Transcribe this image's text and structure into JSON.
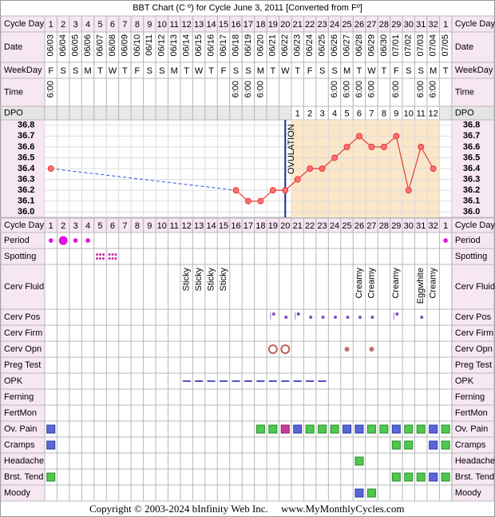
{
  "title": "BBT Chart (C º) for Cycle June 3, 2011  [Converted from Fº]",
  "header_rows": [
    {
      "label": "Cycle Day",
      "values": [
        1,
        2,
        3,
        4,
        5,
        6,
        7,
        8,
        9,
        10,
        11,
        12,
        13,
        14,
        15,
        16,
        17,
        18,
        19,
        20,
        21,
        22,
        23,
        24,
        25,
        26,
        27,
        28,
        29,
        30,
        31,
        32,
        1
      ]
    },
    {
      "label": "Date",
      "values": [
        "06/03",
        "06/04",
        "06/05",
        "06/06",
        "06/07",
        "06/08",
        "06/09",
        "06/10",
        "06/11",
        "06/12",
        "06/13",
        "06/14",
        "06/15",
        "06/16",
        "06/17",
        "06/18",
        "06/19",
        "06/20",
        "06/21",
        "06/22",
        "06/23",
        "06/24",
        "06/25",
        "06/26",
        "06/27",
        "06/28",
        "06/29",
        "06/30",
        "07/01",
        "07/02",
        "07/03",
        "07/04",
        "07/05"
      ]
    },
    {
      "label": "WeekDay",
      "values": [
        "F",
        "S",
        "S",
        "M",
        "T",
        "W",
        "T",
        "F",
        "S",
        "S",
        "M",
        "T",
        "W",
        "T",
        "F",
        "S",
        "S",
        "M",
        "T",
        "W",
        "T",
        "F",
        "S",
        "S",
        "M",
        "T",
        "W",
        "T",
        "F",
        "S",
        "S",
        "M",
        "T"
      ]
    },
    {
      "label": "Time",
      "values": [
        "6:00",
        null,
        null,
        null,
        null,
        null,
        null,
        null,
        null,
        null,
        null,
        null,
        null,
        null,
        null,
        "6:00",
        "6:00",
        "6:00",
        null,
        null,
        null,
        null,
        null,
        "6:00",
        "6:00",
        "6:00",
        "6:00",
        null,
        "6:00",
        null,
        "6:00",
        "6:00",
        null
      ]
    },
    {
      "label": "DPO",
      "values": [
        null,
        null,
        null,
        null,
        null,
        null,
        null,
        null,
        null,
        null,
        null,
        null,
        null,
        null,
        null,
        null,
        null,
        null,
        null,
        null,
        1,
        2,
        3,
        4,
        5,
        6,
        7,
        8,
        9,
        10,
        11,
        12,
        null
      ]
    }
  ],
  "chart_data": {
    "type": "line",
    "series": [
      {
        "values": [
          36.4,
          null,
          null,
          null,
          null,
          null,
          null,
          null,
          null,
          null,
          null,
          null,
          null,
          null,
          null,
          36.2,
          36.1,
          36.1,
          36.2,
          36.2,
          36.3,
          36.4,
          36.4,
          36.5,
          36.6,
          36.7,
          36.6,
          36.6,
          36.7,
          36.2,
          36.6,
          36.4,
          null
        ],
        "color": "#e03a3a"
      }
    ],
    "ylim": [
      35.95,
      36.85
    ],
    "yticks": [
      36.8,
      36.7,
      36.6,
      36.5,
      36.4,
      36.3,
      36.2,
      36.1,
      {
        "value": 36,
        "label": "36.0"
      }
    ],
    "grid": true,
    "ovulation": {
      "label": "OVULATION",
      "cycle_day": 20,
      "color": "#1a2a9a"
    },
    "luteal_shade": "#fbe6c8",
    "gap_color": "#3050e0"
  },
  "symptom_rows": [
    {
      "label": "Period",
      "cells": [
        "dot-small",
        "dot-large",
        "dot-small",
        "dot-small",
        null,
        null,
        null,
        null,
        null,
        null,
        null,
        null,
        null,
        null,
        null,
        null,
        null,
        null,
        null,
        null,
        null,
        null,
        null,
        null,
        null,
        null,
        null,
        null,
        null,
        null,
        null,
        null,
        "dot-small"
      ]
    },
    {
      "label": "Spotting",
      "cells": [
        null,
        null,
        null,
        null,
        "dots",
        "dots",
        null,
        null,
        null,
        null,
        null,
        null,
        null,
        null,
        null,
        null,
        null,
        null,
        null,
        null,
        null,
        null,
        null,
        null,
        null,
        null,
        null,
        null,
        null,
        null,
        null,
        null,
        null
      ]
    },
    {
      "label": "Cerv Fluid",
      "kind": "text",
      "cells": [
        null,
        null,
        null,
        null,
        null,
        null,
        null,
        null,
        null,
        null,
        null,
        "Sticky",
        "Sticky",
        "Sticky",
        "Sticky",
        null,
        null,
        null,
        null,
        null,
        null,
        null,
        null,
        null,
        null,
        "Creamy",
        "Creamy",
        null,
        "Creamy",
        null,
        "Eggwhite",
        "Creamy",
        null
      ]
    },
    {
      "label": "Cerv Pos",
      "cells": [
        null,
        null,
        null,
        null,
        null,
        null,
        null,
        null,
        null,
        null,
        null,
        null,
        null,
        null,
        null,
        null,
        null,
        null,
        "pos-line",
        "pos",
        "pos-line",
        "pos",
        "pos",
        "pos",
        "pos",
        "pos",
        "pos",
        null,
        "pos-line",
        null,
        "pos",
        null,
        null
      ]
    },
    {
      "label": "Cerv Firm",
      "cells": []
    },
    {
      "label": "Cerv Opn",
      "cells": [
        null,
        null,
        null,
        null,
        null,
        null,
        null,
        null,
        null,
        null,
        null,
        null,
        null,
        null,
        null,
        null,
        null,
        null,
        "circle",
        "circle",
        null,
        null,
        null,
        null,
        "dot-brown",
        null,
        "dot-brown",
        null,
        null,
        null,
        null,
        null,
        null
      ]
    },
    {
      "label": "Preg Test",
      "cells": []
    },
    {
      "label": "OPK",
      "cells": [
        null,
        null,
        null,
        null,
        null,
        null,
        null,
        null,
        null,
        null,
        null,
        "dash",
        "dash",
        "dash",
        "dash",
        "dash",
        "dash",
        "dash",
        "dash",
        "dash",
        "dash",
        "dash",
        "dash",
        null,
        null,
        null,
        null,
        null,
        null,
        null,
        null,
        null,
        null
      ]
    },
    {
      "label": "Ferning",
      "cells": []
    },
    {
      "label": "FertMon",
      "cells": []
    },
    {
      "label": "Ov. Pain",
      "cells": [
        "sq-blue",
        null,
        null,
        null,
        null,
        null,
        null,
        null,
        null,
        null,
        null,
        null,
        null,
        null,
        null,
        null,
        null,
        "sq-green",
        "sq-green",
        "sq-magenta",
        "sq-blue",
        "sq-green",
        "sq-green",
        "sq-green",
        "sq-blue",
        "sq-blue",
        "sq-green",
        "sq-green",
        "sq-blue",
        "sq-green",
        "sq-green",
        "sq-blue",
        "sq-green"
      ]
    },
    {
      "label": "Cramps",
      "cells": [
        "sq-blue",
        null,
        null,
        null,
        null,
        null,
        null,
        null,
        null,
        null,
        null,
        null,
        null,
        null,
        null,
        null,
        null,
        null,
        null,
        null,
        null,
        null,
        null,
        null,
        null,
        null,
        null,
        null,
        "sq-green",
        "sq-green",
        null,
        "sq-blue",
        "sq-green"
      ]
    },
    {
      "label": "Headache",
      "cells": [
        null,
        null,
        null,
        null,
        null,
        null,
        null,
        null,
        null,
        null,
        null,
        null,
        null,
        null,
        null,
        null,
        null,
        null,
        null,
        null,
        null,
        null,
        null,
        null,
        null,
        "sq-green",
        null,
        null,
        null,
        null,
        null,
        null,
        null
      ]
    },
    {
      "label": "Brst. Tend.",
      "cells": [
        "sq-green",
        null,
        null,
        null,
        null,
        null,
        null,
        null,
        null,
        null,
        null,
        null,
        null,
        null,
        null,
        null,
        null,
        null,
        null,
        null,
        null,
        null,
        null,
        null,
        null,
        null,
        null,
        null,
        "sq-green",
        "sq-green",
        "sq-green",
        "sq-blue",
        "sq-green"
      ]
    },
    {
      "label": "Moody",
      "cells": [
        null,
        null,
        null,
        null,
        null,
        null,
        null,
        null,
        null,
        null,
        null,
        null,
        null,
        null,
        null,
        null,
        null,
        null,
        null,
        null,
        null,
        null,
        null,
        null,
        null,
        "sq-blue",
        "sq-green",
        null,
        null,
        null,
        null,
        null,
        null
      ]
    }
  ],
  "footer": [
    "Copyright © 2003-2024 bInfinity Web Inc.",
    "www.MyMonthlyCycles.com"
  ]
}
